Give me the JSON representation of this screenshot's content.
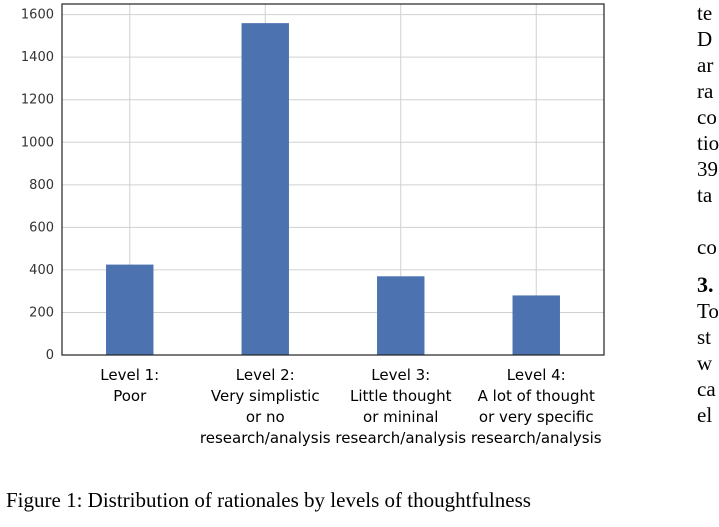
{
  "chart_data": {
    "type": "bar",
    "categories": [
      [
        "Level 1:",
        "Poor"
      ],
      [
        "Level 2:",
        "Very simplistic",
        "or no",
        "research/analysis"
      ],
      [
        "Level 3:",
        "Little thought",
        "or mininal",
        "research/analysis"
      ],
      [
        "Level 4:",
        "A lot of thought",
        "or very specific",
        "research/analysis"
      ]
    ],
    "values": [
      425,
      1560,
      370,
      280
    ],
    "ylim": [
      0,
      1650
    ],
    "yticks": [
      0,
      200,
      400,
      600,
      800,
      1000,
      1200,
      1400,
      1600
    ],
    "grid": true,
    "bar_color": "#4c72b0"
  },
  "caption": "Figure 1: Distribution of rationales by levels of thoughtfulness",
  "side_text": [
    "te",
    "D",
    "ar",
    "ra",
    "co",
    "tio",
    "39",
    "ta",
    "",
    "co",
    "",
    "3.",
    "To",
    "st",
    "w",
    "ca",
    "el"
  ]
}
